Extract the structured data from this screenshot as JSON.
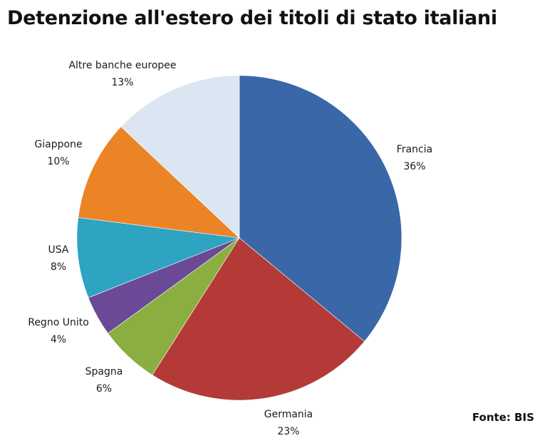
{
  "chart_data": {
    "type": "pie",
    "title": "Detenzione all'estero dei titoli di stato italiani",
    "source": "Fonte: BIS",
    "slices": [
      {
        "name": "Francia",
        "value": 36,
        "label": "36%",
        "color": "#3A67A8"
      },
      {
        "name": "Germania",
        "value": 23,
        "label": "23%",
        "color": "#B33A36"
      },
      {
        "name": "Spagna",
        "value": 6,
        "label": "6%",
        "color": "#8AAE3F"
      },
      {
        "name": "Regno Unito",
        "value": 4,
        "label": "4%",
        "color": "#6A4A96"
      },
      {
        "name": "USA",
        "value": 8,
        "label": "8%",
        "color": "#2FA3C2"
      },
      {
        "name": "Giappone",
        "value": 10,
        "label": "10%",
        "color": "#EA8427"
      },
      {
        "name": "Altre banche europee",
        "value": 13,
        "label": "13%",
        "color": "#DCE6F2"
      }
    ]
  }
}
